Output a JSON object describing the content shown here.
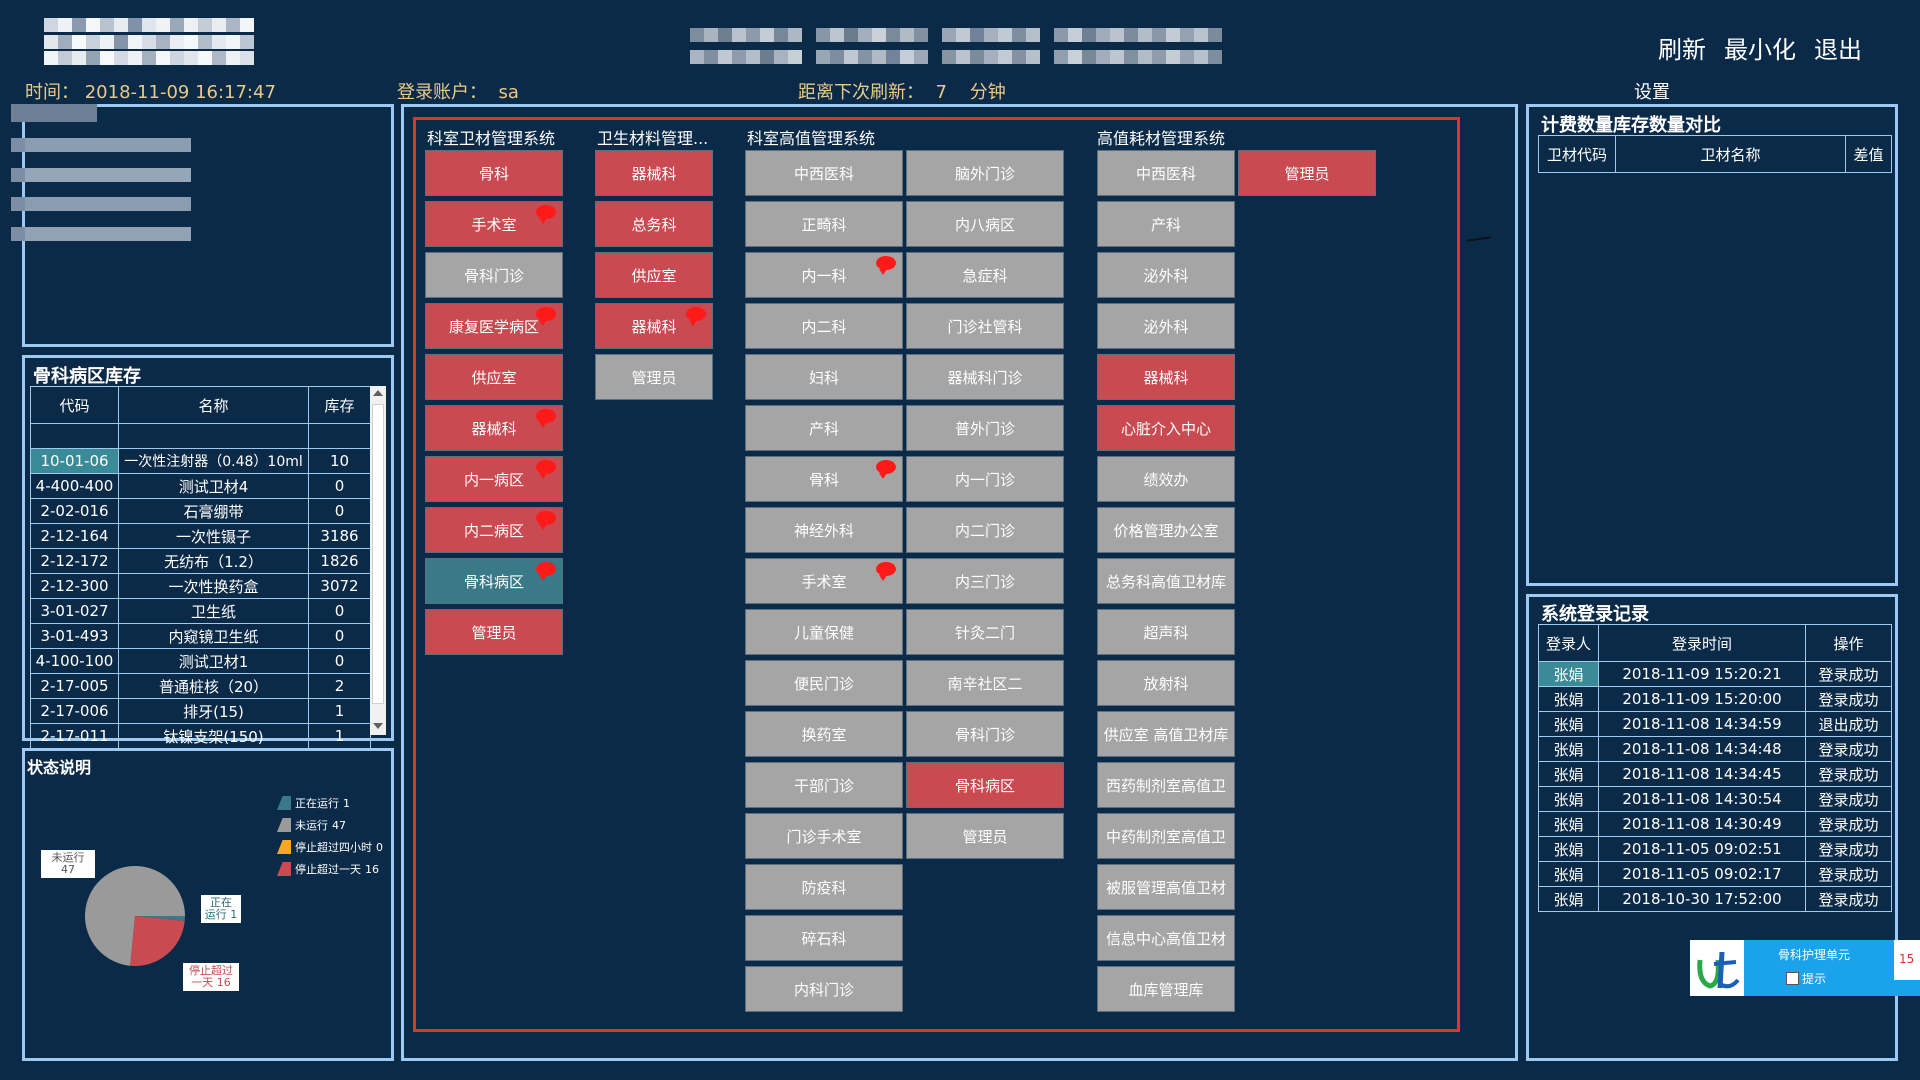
{
  "header": {
    "time_label": "时间：",
    "time_value": "2018-11-09 16:17:47",
    "account_label": "登录账户：",
    "account_value": "sa",
    "refresh_label": "距离下次刷新：",
    "refresh_value": "7",
    "refresh_unit": "分钟",
    "buttons": {
      "refresh": "刷新",
      "minimize": "最小化",
      "exit": "退出"
    },
    "settings": "设置"
  },
  "stock_panel": {
    "title": "骨科病区库存",
    "columns": [
      "代码",
      "名称",
      "库存"
    ],
    "rows": [
      [
        "10-01-06",
        "一次性注射器（0.48）10ml",
        "10"
      ],
      [
        "4-400-400",
        "测试卫材4",
        "0"
      ],
      [
        "2-02-016",
        "石膏绷带",
        "0"
      ],
      [
        "2-12-164",
        "一次性镊子",
        "3186"
      ],
      [
        "2-12-172",
        "无纺布（1.2）",
        "1826"
      ],
      [
        "2-12-300",
        "一次性换药盒",
        "3072"
      ],
      [
        "3-01-027",
        "卫生纸",
        "0"
      ],
      [
        "3-01-493",
        "内窥镜卫生纸",
        "0"
      ],
      [
        "4-100-100",
        "测试卫材1",
        "0"
      ],
      [
        "2-17-005",
        "普通桩核（20）",
        "2"
      ],
      [
        "2-17-006",
        "排牙(15)",
        "1"
      ],
      [
        "2-17-011",
        "钛镍支架(150)",
        "1"
      ]
    ]
  },
  "status_panel": {
    "title": "状态说明",
    "legend": [
      {
        "label": "正在运行",
        "count": "1",
        "color": "#3a7a88"
      },
      {
        "label": "未运行",
        "count": "47",
        "color": "#9a9a9a"
      },
      {
        "label": "停止超过四小时",
        "count": "0",
        "color": "#f5a623"
      },
      {
        "label": "停止超过一天",
        "count": "16",
        "color": "#c94a51"
      }
    ],
    "callouts": {
      "not_running": [
        "未运行",
        "47"
      ],
      "running": [
        "正在",
        "运行 1"
      ],
      "stopped_day": [
        "停止超过",
        "一天 16"
      ]
    }
  },
  "chart_data": {
    "type": "pie",
    "categories": [
      "正在运行",
      "未运行",
      "停止超过四小时",
      "停止超过一天"
    ],
    "values": [
      1,
      47,
      0,
      16
    ],
    "colors": [
      "#3a7a88",
      "#9a9a9a",
      "#f5a623",
      "#c94a51"
    ]
  },
  "sections": {
    "s1": "科室卫材管理系统",
    "s2": "卫生材料管理...",
    "s3": "科室高值管理系统",
    "s4": "高值耗材管理系统"
  },
  "col1": [
    {
      "label": "骨科",
      "color": "red",
      "bubble": false
    },
    {
      "label": "手术室",
      "color": "red",
      "bubble": true
    },
    {
      "label": "骨科门诊",
      "color": "gray",
      "bubble": false
    },
    {
      "label": "康复医学病区",
      "color": "red",
      "bubble": true
    },
    {
      "label": "供应室",
      "color": "red",
      "bubble": false
    },
    {
      "label": "器械科",
      "color": "red",
      "bubble": true
    },
    {
      "label": "内一病区",
      "color": "red",
      "bubble": true
    },
    {
      "label": "内二病区",
      "color": "red",
      "bubble": true
    },
    {
      "label": "骨科病区",
      "color": "teal",
      "bubble": true
    },
    {
      "label": "管理员",
      "color": "red",
      "bubble": false
    }
  ],
  "col2": [
    {
      "label": "器械科",
      "color": "red",
      "bubble": false
    },
    {
      "label": "总务科",
      "color": "red",
      "bubble": false
    },
    {
      "label": "供应室",
      "color": "red",
      "bubble": false
    },
    {
      "label": "器械科",
      "color": "red",
      "bubble": true
    },
    {
      "label": "管理员",
      "color": "gray",
      "bubble": false
    }
  ],
  "col3": [
    {
      "label": "中西医科",
      "color": "gray",
      "bubble": false
    },
    {
      "label": "正畸科",
      "color": "gray",
      "bubble": false
    },
    {
      "label": "内一科",
      "color": "gray",
      "bubble": true
    },
    {
      "label": "内二科",
      "color": "gray",
      "bubble": false
    },
    {
      "label": "妇科",
      "color": "gray",
      "bubble": false
    },
    {
      "label": "产科",
      "color": "gray",
      "bubble": false
    },
    {
      "label": "骨科",
      "color": "gray",
      "bubble": true
    },
    {
      "label": "神经外科",
      "color": "gray",
      "bubble": false
    },
    {
      "label": "手术室",
      "color": "gray",
      "bubble": true
    },
    {
      "label": "儿童保健",
      "color": "gray",
      "bubble": false
    },
    {
      "label": "便民门诊",
      "color": "gray",
      "bubble": false
    },
    {
      "label": "换药室",
      "color": "gray",
      "bubble": false
    },
    {
      "label": "干部门诊",
      "color": "gray",
      "bubble": false
    },
    {
      "label": "门诊手术室",
      "color": "gray",
      "bubble": false
    },
    {
      "label": "防疫科",
      "color": "gray",
      "bubble": false
    },
    {
      "label": "碎石科",
      "color": "gray",
      "bubble": false
    },
    {
      "label": "内科门诊",
      "color": "gray",
      "bubble": false
    }
  ],
  "col4": [
    {
      "label": "脑外门诊",
      "color": "gray",
      "bubble": false
    },
    {
      "label": "内八病区",
      "color": "gray",
      "bubble": false
    },
    {
      "label": "急症科",
      "color": "gray",
      "bubble": false
    },
    {
      "label": "门诊社管科",
      "color": "gray",
      "bubble": false
    },
    {
      "label": "器械科门诊",
      "color": "gray",
      "bubble": false
    },
    {
      "label": "普外门诊",
      "color": "gray",
      "bubble": false
    },
    {
      "label": "内一门诊",
      "color": "gray",
      "bubble": false
    },
    {
      "label": "内二门诊",
      "color": "gray",
      "bubble": false
    },
    {
      "label": "内三门诊",
      "color": "gray",
      "bubble": false
    },
    {
      "label": "针灸二门",
      "color": "gray",
      "bubble": false
    },
    {
      "label": "南辛社区二",
      "color": "gray",
      "bubble": false
    },
    {
      "label": "骨科门诊",
      "color": "gray",
      "bubble": false
    },
    {
      "label": "骨科病区",
      "color": "red",
      "bubble": false
    },
    {
      "label": "管理员",
      "color": "gray",
      "bubble": false
    }
  ],
  "col5": [
    {
      "label": "中西医科",
      "color": "gray",
      "bubble": false
    },
    {
      "label": "产科",
      "color": "gray",
      "bubble": false
    },
    {
      "label": "泌外科",
      "color": "gray",
      "bubble": false
    },
    {
      "label": "泌外科",
      "color": "gray",
      "bubble": false
    },
    {
      "label": "器械科",
      "color": "red",
      "bubble": false
    },
    {
      "label": "心脏介入中心",
      "color": "red",
      "bubble": false
    },
    {
      "label": "绩效办",
      "color": "gray",
      "bubble": false
    },
    {
      "label": "价格管理办公室",
      "color": "gray",
      "bubble": false
    },
    {
      "label": "总务科高值卫材库",
      "color": "gray",
      "bubble": false
    },
    {
      "label": "超声科",
      "color": "gray",
      "bubble": false
    },
    {
      "label": "放射科",
      "color": "gray",
      "bubble": false
    },
    {
      "label": "供应室 高值卫材库",
      "color": "gray",
      "bubble": false
    },
    {
      "label": "西药制剂室高值卫",
      "color": "gray",
      "bubble": false
    },
    {
      "label": "中药制剂室高值卫",
      "color": "gray",
      "bubble": false
    },
    {
      "label": "被服管理高值卫材",
      "color": "gray",
      "bubble": false
    },
    {
      "label": "信息中心高值卫材",
      "color": "gray",
      "bubble": false
    },
    {
      "label": "血库管理库",
      "color": "gray",
      "bubble": false
    }
  ],
  "col6": [
    {
      "label": "管理员",
      "color": "red",
      "bubble": false
    }
  ],
  "compare_panel": {
    "title": "计费数量库存数量对比",
    "columns": [
      "卫材代码",
      "卫材名称",
      "差值"
    ]
  },
  "login_panel": {
    "title": "系统登录记录",
    "columns": [
      "登录人",
      "登录时间",
      "操作"
    ],
    "rows": [
      [
        "张娟",
        "2018-11-09 15:20:21",
        "登录成功"
      ],
      [
        "张娟",
        "2018-11-09 15:20:00",
        "登录成功"
      ],
      [
        "张娟",
        "2018-11-08 14:34:59",
        "退出成功"
      ],
      [
        "张娟",
        "2018-11-08 14:34:48",
        "登录成功"
      ],
      [
        "张娟",
        "2018-11-08 14:34:45",
        "登录成功"
      ],
      [
        "张娟",
        "2018-11-08 14:30:54",
        "登录成功"
      ],
      [
        "张娟",
        "2018-11-08 14:30:49",
        "登录成功"
      ],
      [
        "张娟",
        "2018-11-05 09:02:51",
        "登录成功"
      ],
      [
        "张娟",
        "2018-11-05 09:02:17",
        "登录成功"
      ],
      [
        "张娟",
        "2018-10-30 17:52:00",
        "登录成功"
      ]
    ]
  },
  "notify": {
    "title": "骨科护理单元",
    "checkbox_label": "提示",
    "count": "15"
  }
}
